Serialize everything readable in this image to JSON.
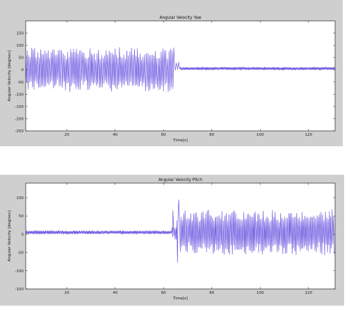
{
  "chart_data": [
    {
      "type": "line",
      "title": "Angular Velocity Yaw",
      "xlabel": "Time[s]",
      "ylabel": "Angular Velocity [deg/sec]",
      "xlim": [
        3,
        131
      ],
      "ylim": [
        -250,
        200
      ],
      "xticks": [
        20,
        40,
        60,
        80,
        100,
        120
      ],
      "yticks": [
        -250,
        -200,
        -150,
        -100,
        -50,
        0,
        50,
        100,
        150
      ],
      "grid": false,
      "color": "#3a1fd6",
      "series": [
        {
          "segments": [
            {
              "x_start": 3,
              "x_end": 64.5,
              "center": 0,
              "amplitude": 80,
              "period": 0.62
            },
            {
              "x_start": 64.5,
              "x_end": 67,
              "center": 15,
              "amplitude": 18,
              "period": 0.9
            },
            {
              "x_start": 67,
              "x_end": 131,
              "center": 5,
              "amplitude": 6,
              "period": 0.35
            }
          ]
        }
      ]
    },
    {
      "type": "line",
      "title": "Angular Velocity Pitch",
      "xlabel": "Time[s]",
      "ylabel": "Angular Velocity [deg/sec]",
      "xlim": [
        3,
        131
      ],
      "ylim": [
        -150,
        140
      ],
      "xticks": [
        20,
        40,
        60,
        80,
        100,
        120
      ],
      "yticks": [
        -150,
        -100,
        -50,
        0,
        50,
        100
      ],
      "grid": false,
      "color": "#3a1fd6",
      "series": [
        {
          "segments": [
            {
              "x_start": 3,
              "x_end": 63.5,
              "center": 5,
              "amplitude": 5,
              "period": 0.4
            },
            {
              "x_start": 63.5,
              "x_end": 65.5,
              "center": 5,
              "amplitude": 20,
              "period": 0.6
            },
            {
              "x_start": 65.5,
              "x_end": 131,
              "center": 5,
              "amplitude": 55,
              "period": 0.55
            }
          ],
          "spikes": [
            {
              "x": 63.9,
              "y": 65
            },
            {
              "x": 65.8,
              "y": -78
            },
            {
              "x": 66.3,
              "y": 95
            }
          ]
        }
      ]
    }
  ]
}
